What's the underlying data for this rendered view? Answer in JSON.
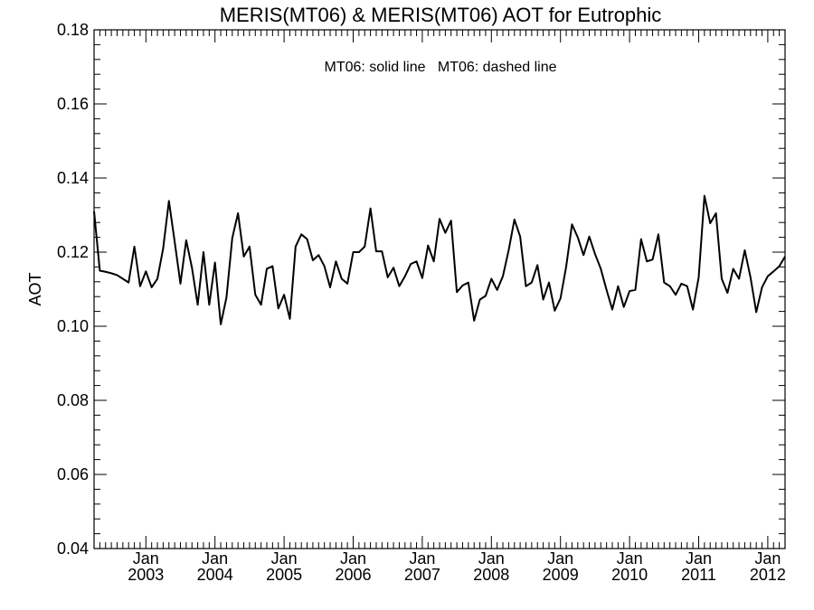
{
  "chart_data": {
    "type": "line",
    "title": "MERIS(MT06) & MERIS(MT06)  AOT for Eutrophic",
    "annotation": "MT06: solid line   MT06: dashed line",
    "xlabel": "",
    "ylabel": "AOT",
    "ylim": [
      0.04,
      0.18
    ],
    "yticks": [
      "0.04",
      "0.06",
      "0.08",
      "0.10",
      "0.12",
      "0.14",
      "0.16",
      "0.18"
    ],
    "xlim": [
      "2002-04",
      "2012-04"
    ],
    "xticks": [
      {
        "month": "Jan",
        "year": "2003",
        "date": "2003-01"
      },
      {
        "month": "Jan",
        "year": "2004",
        "date": "2004-01"
      },
      {
        "month": "Jan",
        "year": "2005",
        "date": "2005-01"
      },
      {
        "month": "Jan",
        "year": "2006",
        "date": "2006-01"
      },
      {
        "month": "Jan",
        "year": "2007",
        "date": "2007-01"
      },
      {
        "month": "Jan",
        "year": "2008",
        "date": "2008-01"
      },
      {
        "month": "Jan",
        "year": "2009",
        "date": "2009-01"
      },
      {
        "month": "Jan",
        "year": "2010",
        "date": "2010-01"
      },
      {
        "month": "Jan",
        "year": "2011",
        "date": "2011-01"
      },
      {
        "month": "Jan",
        "year": "2012",
        "date": "2012-01"
      }
    ],
    "grid": false,
    "line_color": "#000000",
    "series": [
      {
        "style": "solid",
        "x": [
          "2002-04",
          "2002-05",
          "2002-06",
          "2002-07",
          "2002-08",
          "2002-09",
          "2002-10",
          "2002-11",
          "2002-12",
          "2003-01",
          "2003-02",
          "2003-03",
          "2003-04",
          "2003-05",
          "2003-06",
          "2003-07",
          "2003-08",
          "2003-09",
          "2003-10",
          "2003-11",
          "2003-12",
          "2004-01",
          "2004-02",
          "2004-03",
          "2004-04",
          "2004-05",
          "2004-06",
          "2004-07",
          "2004-08",
          "2004-09",
          "2004-10",
          "2004-11",
          "2004-12",
          "2005-01",
          "2005-02",
          "2005-03",
          "2005-04",
          "2005-05",
          "2005-06",
          "2005-07",
          "2005-08",
          "2005-09",
          "2005-10",
          "2005-11",
          "2005-12",
          "2006-01",
          "2006-02",
          "2006-03",
          "2006-04",
          "2006-05",
          "2006-06",
          "2006-07",
          "2006-08",
          "2006-09",
          "2006-10",
          "2006-11",
          "2006-12",
          "2007-01",
          "2007-02",
          "2007-03",
          "2007-04",
          "2007-05",
          "2007-06",
          "2007-07",
          "2007-08",
          "2007-09",
          "2007-10",
          "2007-11",
          "2007-12",
          "2008-01",
          "2008-02",
          "2008-03",
          "2008-04",
          "2008-05",
          "2008-06",
          "2008-07",
          "2008-08",
          "2008-09",
          "2008-10",
          "2008-11",
          "2008-12",
          "2009-01",
          "2009-02",
          "2009-03",
          "2009-04",
          "2009-05",
          "2009-06",
          "2009-07",
          "2009-08",
          "2009-09",
          "2009-10",
          "2009-11",
          "2009-12",
          "2010-01",
          "2010-02",
          "2010-03",
          "2010-04",
          "2010-05",
          "2010-06",
          "2010-07",
          "2010-08",
          "2010-09",
          "2010-10",
          "2010-11",
          "2010-12",
          "2011-01",
          "2011-02",
          "2011-03",
          "2011-04",
          "2011-05",
          "2011-06",
          "2011-07",
          "2011-08",
          "2011-09",
          "2011-10",
          "2011-11",
          "2011-12",
          "2012-01",
          "2012-02",
          "2012-03",
          "2012-04"
        ],
        "values": [
          0.131,
          0.115,
          0.1147,
          0.1143,
          0.1138,
          0.1128,
          0.1118,
          0.1215,
          0.1108,
          0.1148,
          0.1105,
          0.1128,
          0.121,
          0.1338,
          0.1228,
          0.1115,
          0.1232,
          0.1158,
          0.1058,
          0.12,
          0.1058,
          0.1172,
          0.1005,
          0.1078,
          0.1238,
          0.1305,
          0.1188,
          0.1215,
          0.1085,
          0.1058,
          0.1155,
          0.1162,
          0.1048,
          0.1085,
          0.102,
          0.1215,
          0.1248,
          0.1235,
          0.1178,
          0.1192,
          0.1162,
          0.1105,
          0.1175,
          0.1128,
          0.1115,
          0.12,
          0.12,
          0.1215,
          0.1318,
          0.1202,
          0.1202,
          0.1132,
          0.1158,
          0.1108,
          0.1135,
          0.1168,
          0.1175,
          0.113,
          0.1218,
          0.1175,
          0.129,
          0.1252,
          0.1285,
          0.1092,
          0.111,
          0.1118,
          0.1015,
          0.1072,
          0.1082,
          0.1128,
          0.1098,
          0.1135,
          0.1205,
          0.1288,
          0.1242,
          0.1108,
          0.1118,
          0.1165,
          0.1072,
          0.1118,
          0.1042,
          0.1075,
          0.1162,
          0.1275,
          0.124,
          0.1192,
          0.1242,
          0.1195,
          0.1155,
          0.1098,
          0.1045,
          0.1108,
          0.1052,
          0.1095,
          0.1098,
          0.1235,
          0.1175,
          0.118,
          0.1248,
          0.1118,
          0.1108,
          0.1085,
          0.1115,
          0.1108,
          0.1045,
          0.1132,
          0.1352,
          0.1278,
          0.1305,
          0.1128,
          0.109,
          0.1155,
          0.1128,
          0.1205,
          0.1132,
          0.1038,
          0.1105,
          0.1135,
          0.1148,
          0.1162,
          0.1188
        ]
      }
    ]
  }
}
